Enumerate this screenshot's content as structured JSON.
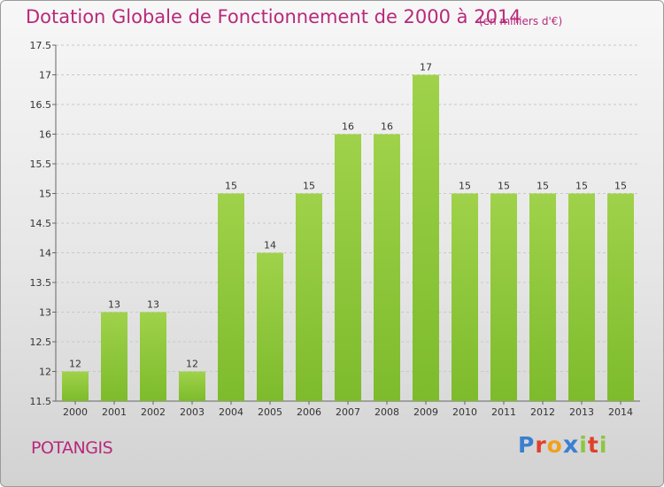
{
  "header": {
    "title": "Dotation Globale de Fonctionnement de 2000 à 2014",
    "unit": "(en milliers d'€)"
  },
  "footer": {
    "commune": "POTANGIS",
    "logo_letters": [
      "P",
      "r",
      "o",
      "x",
      "i",
      "t",
      "i"
    ]
  },
  "colors": {
    "bar": "#7dbb2c",
    "bar_light": "#9fd24a",
    "title": "#b8297a",
    "grid": "#c8c8c8",
    "logo": [
      "#3a7fd0",
      "#e0402b",
      "#f0a020",
      "#3a7fd0",
      "#8dc63f",
      "#e0402b",
      "#8dc63f"
    ]
  },
  "chart_data": {
    "type": "bar",
    "title": "Dotation Globale de Fonctionnement de 2000 à 2014",
    "subtitle": "(en milliers d'€)",
    "xlabel": "",
    "ylabel": "",
    "categories": [
      "2000",
      "2001",
      "2002",
      "2003",
      "2004",
      "2005",
      "2006",
      "2007",
      "2008",
      "2009",
      "2010",
      "2011",
      "2012",
      "2013",
      "2014"
    ],
    "values": [
      12,
      13,
      13,
      12,
      15,
      14,
      15,
      16,
      16,
      17,
      15,
      15,
      15,
      15,
      15
    ],
    "ylim": [
      11.5,
      17.5
    ],
    "yticks": [
      "11.5",
      "12",
      "12.5",
      "13",
      "13.5",
      "14",
      "14.5",
      "15",
      "15.5",
      "16",
      "16.5",
      "17",
      "17.5"
    ],
    "grid": true,
    "legend": "none"
  }
}
